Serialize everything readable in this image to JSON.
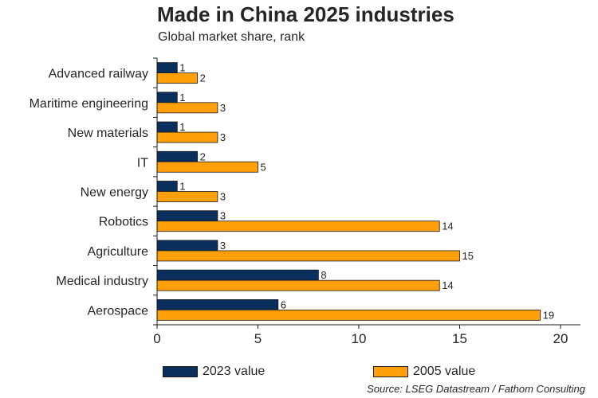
{
  "chart_data": {
    "type": "bar",
    "orientation": "horizontal",
    "title": "Made in China 2025 industries",
    "subtitle": "Global market share, rank",
    "categories": [
      "Advanced railway",
      "Maritime engineering",
      "New materials",
      "IT",
      "New energy",
      "Robotics",
      "Agriculture",
      "Medical industry",
      "Aerospace"
    ],
    "series": [
      {
        "name": "2023 value",
        "color": "#0a2f5c",
        "values": [
          1,
          1,
          1,
          2,
          1,
          3,
          3,
          8,
          6
        ]
      },
      {
        "name": "2005 value",
        "color": "#ff9f0a",
        "values": [
          2,
          3,
          3,
          5,
          3,
          14,
          15,
          14,
          19
        ]
      }
    ],
    "xlim": [
      0,
      20
    ],
    "xticks": [
      0,
      5,
      10,
      15,
      20
    ],
    "grid": false,
    "legend_position": "bottom",
    "source": "Source: LSEG Datastream / Fathom Consulting"
  }
}
